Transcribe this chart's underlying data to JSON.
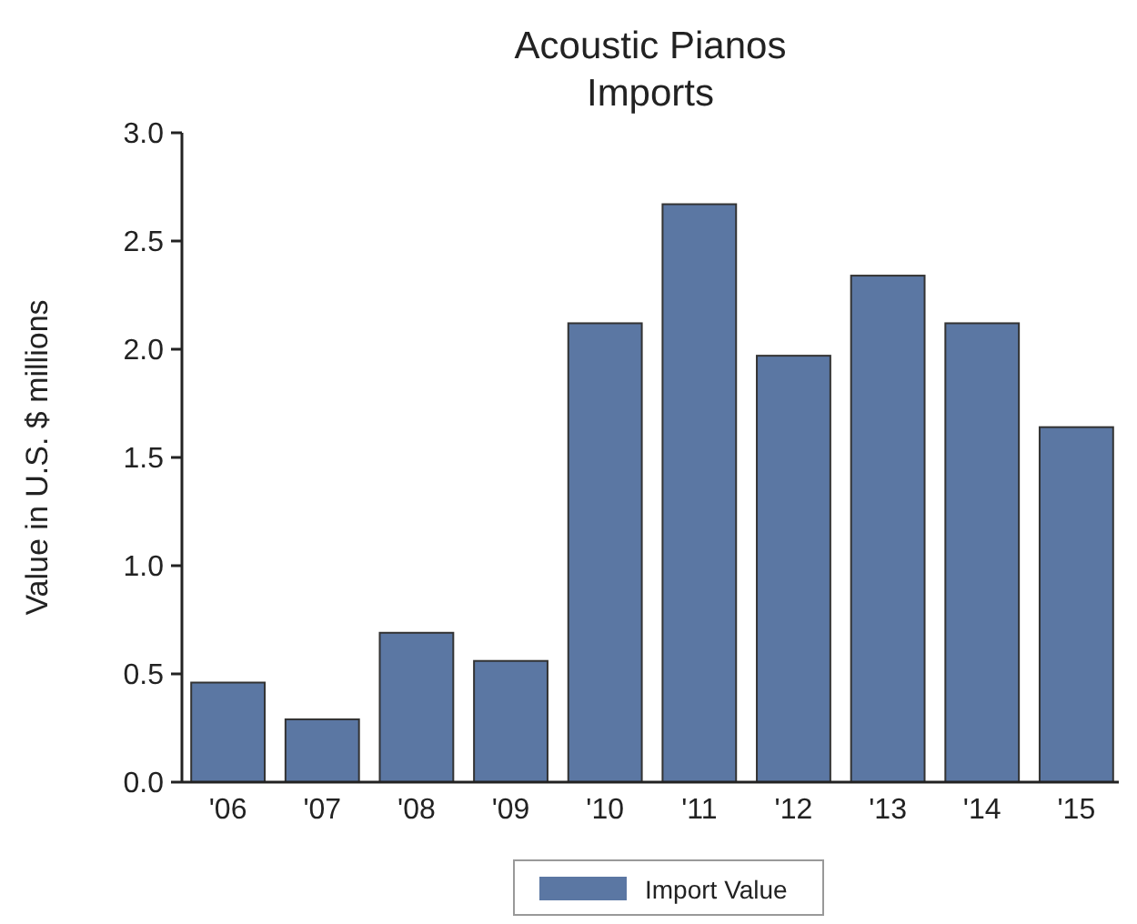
{
  "chart_data": {
    "type": "bar",
    "title": "Acoustic Pianos\nImports",
    "ylabel": "Value in U.S. $ millions",
    "categories": [
      "'06",
      "'07",
      "'08",
      "'09",
      "'10",
      "'11",
      "'12",
      "'13",
      "'14",
      "'15"
    ],
    "series": [
      {
        "name": "Import Value",
        "color": "#5b77a3",
        "values": [
          0.46,
          0.29,
          0.69,
          0.56,
          2.12,
          2.67,
          1.97,
          2.34,
          2.12,
          1.64
        ]
      }
    ],
    "ylim": [
      0,
      3
    ],
    "yticks": [
      {
        "value": 0,
        "label": "0.0"
      },
      0.5,
      {
        "value": 1,
        "label": "1.0"
      },
      1.5,
      {
        "value": 2,
        "label": "2.0"
      },
      2.5,
      {
        "value": 3,
        "label": "3.0"
      }
    ],
    "grid": false,
    "legend": "bottom"
  }
}
